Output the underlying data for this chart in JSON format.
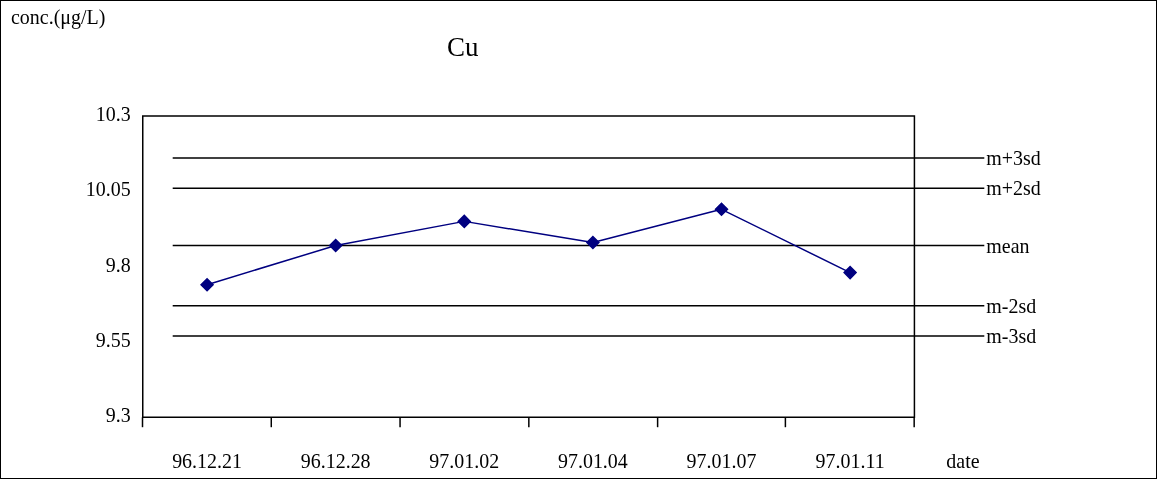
{
  "chart_data": {
    "type": "line",
    "title": "Cu",
    "ylabel": "conc.(μg/L)",
    "xlabel": "date",
    "categories": [
      "96.12.21",
      "96.12.28",
      "97.01.02",
      "97.01.04",
      "97.01.07",
      "97.01.11"
    ],
    "series": [
      {
        "color": "#000080",
        "values": [
          9.74,
          9.87,
          9.95,
          9.88,
          9.99,
          9.78
        ]
      }
    ],
    "ylim": [
      9.3,
      10.3
    ],
    "yticks": [
      9.3,
      9.55,
      9.8,
      10.05,
      10.3
    ],
    "ref_lines": [
      {
        "axis": "y",
        "value": 10.16,
        "label": "m+3sd",
        "color": "#000000",
        "line_style": "solid"
      },
      {
        "axis": "y",
        "value": 10.06,
        "label": "m+2sd",
        "color": "#000000",
        "line_style": "solid"
      },
      {
        "axis": "y",
        "value": 9.87,
        "label": "mean",
        "color": "#000000",
        "line_style": "solid"
      },
      {
        "axis": "y",
        "value": 9.67,
        "label": "m-2sd",
        "color": "#000000",
        "line_style": "solid"
      },
      {
        "axis": "y",
        "value": 9.57,
        "label": "m-3sd",
        "color": "#000000",
        "line_style": "solid"
      }
    ],
    "grid": false,
    "legend": false,
    "marker": "diamond",
    "line_style": "solid"
  }
}
